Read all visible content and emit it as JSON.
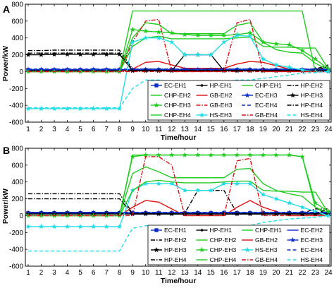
{
  "chart_data": [
    {
      "panel": "A",
      "type": "line",
      "ylabel": "Power/kW",
      "xlabel": "Time/hour",
      "ylim": [
        -600,
        800
      ],
      "yticks": [
        -600,
        -400,
        -200,
        0,
        200,
        400,
        600,
        800
      ],
      "xticks": [
        1,
        2,
        3,
        4,
        5,
        6,
        7,
        8,
        9,
        10,
        11,
        12,
        13,
        14,
        15,
        16,
        17,
        18,
        19,
        20,
        21,
        22,
        23,
        24
      ],
      "x": [
        1,
        2,
        3,
        4,
        5,
        6,
        7,
        8,
        9,
        10,
        11,
        12,
        13,
        14,
        15,
        16,
        17,
        18,
        19,
        20,
        21,
        22,
        23,
        24
      ],
      "legend_position": "bottom-right",
      "series": [
        {
          "name": "EC-EH1",
          "color": "#0a2dc8",
          "dash": "solid",
          "marker": "square",
          "values": [
            20,
            20,
            20,
            20,
            20,
            20,
            20,
            20,
            20,
            20,
            20,
            20,
            20,
            20,
            20,
            20,
            20,
            20,
            20,
            20,
            20,
            20,
            20,
            20
          ]
        },
        {
          "name": "HP-EH1",
          "color": "#000000",
          "dash": "solid",
          "marker": "dot",
          "values": [
            10,
            10,
            10,
            10,
            10,
            10,
            10,
            10,
            10,
            10,
            10,
            10,
            10,
            10,
            10,
            10,
            10,
            10,
            10,
            10,
            10,
            10,
            10,
            10
          ]
        },
        {
          "name": "CHP-EH1",
          "color": "#22cc22",
          "dash": "solid",
          "marker": "none",
          "values": [
            0,
            0,
            0,
            0,
            0,
            0,
            0,
            0,
            720,
            720,
            720,
            720,
            720,
            720,
            720,
            720,
            720,
            720,
            720,
            720,
            720,
            720,
            0,
            0
          ]
        },
        {
          "name": "HP-EH2",
          "color": "#000000",
          "dash": "dashdot",
          "marker": "none",
          "values": [
            250,
            250,
            255,
            255,
            255,
            255,
            255,
            255,
            30,
            30,
            30,
            30,
            30,
            30,
            30,
            30,
            30,
            30,
            30,
            30,
            30,
            30,
            30,
            80
          ]
        },
        {
          "name": "CHP-EH2",
          "color": "#22cc22",
          "dash": "solid",
          "marker": "none",
          "values": [
            0,
            0,
            0,
            0,
            0,
            0,
            0,
            0,
            400,
            580,
            560,
            450,
            450,
            450,
            450,
            450,
            550,
            580,
            350,
            260,
            230,
            220,
            100,
            20
          ]
        },
        {
          "name": "GB-EH2",
          "color": "#dd1111",
          "dash": "solid",
          "marker": "none",
          "values": [
            0,
            0,
            0,
            0,
            0,
            0,
            0,
            0,
            30,
            110,
            120,
            80,
            40,
            40,
            40,
            40,
            90,
            120,
            110,
            70,
            30,
            0,
            0,
            0
          ]
        },
        {
          "name": "EC-EH3",
          "color": "#0a2dc8",
          "dash": "solid",
          "marker": "star",
          "values": [
            25,
            25,
            25,
            25,
            25,
            25,
            25,
            25,
            25,
            25,
            25,
            25,
            25,
            25,
            25,
            25,
            25,
            25,
            25,
            25,
            25,
            25,
            25,
            25
          ]
        },
        {
          "name": "HP-EH3",
          "color": "#000000",
          "dash": "solid",
          "marker": "star",
          "values": [
            200,
            200,
            205,
            205,
            205,
            205,
            205,
            205,
            10,
            10,
            10,
            10,
            200,
            200,
            200,
            10,
            10,
            10,
            10,
            10,
            10,
            10,
            10,
            10
          ]
        },
        {
          "name": "CHP-EH3",
          "color": "#22cc22",
          "dash": "solid",
          "marker": "star",
          "values": [
            0,
            0,
            0,
            0,
            0,
            0,
            0,
            0,
            500,
            480,
            470,
            460,
            440,
            430,
            430,
            430,
            440,
            460,
            350,
            330,
            320,
            250,
            150,
            30
          ]
        },
        {
          "name": "GB-EH3",
          "color": "#dd1111",
          "dash": "dashdot",
          "marker": "none",
          "values": [
            0,
            0,
            0,
            0,
            0,
            0,
            0,
            0,
            350,
            600,
            620,
            0,
            0,
            0,
            0,
            0,
            580,
            620,
            0,
            0,
            0,
            0,
            0,
            0
          ]
        },
        {
          "name": "EC-EH4",
          "color": "#0a2dc8",
          "dash": "dashed",
          "marker": "none",
          "values": [
            30,
            30,
            30,
            30,
            30,
            30,
            30,
            30,
            30,
            30,
            30,
            30,
            30,
            30,
            30,
            30,
            30,
            30,
            30,
            30,
            30,
            30,
            30,
            30
          ]
        },
        {
          "name": "HP-EH4",
          "color": "#000000",
          "dash": "dashdot",
          "marker": "none",
          "values": [
            220,
            220,
            220,
            220,
            220,
            220,
            220,
            220,
            15,
            15,
            15,
            15,
            15,
            15,
            15,
            15,
            15,
            15,
            15,
            15,
            15,
            15,
            15,
            60
          ]
        },
        {
          "name": "CHP-EH4",
          "color": "#22cc22",
          "dash": "solid",
          "marker": "none",
          "values": [
            0,
            0,
            0,
            0,
            0,
            0,
            0,
            0,
            300,
            400,
            420,
            390,
            390,
            390,
            390,
            390,
            400,
            410,
            300,
            290,
            290,
            280,
            280,
            30
          ]
        },
        {
          "name": "HS-EH3",
          "color": "#22dde6",
          "dash": "solid",
          "marker": "star",
          "values": [
            -440,
            -440,
            -440,
            -440,
            -440,
            -440,
            -440,
            -440,
            350,
            400,
            400,
            350,
            200,
            200,
            200,
            350,
            430,
            420,
            150,
            80,
            50,
            20,
            0,
            0
          ]
        },
        {
          "name": "GB-EH4",
          "color": "#dd1111",
          "dash": "dashdot",
          "marker": "none",
          "values": [
            0,
            0,
            0,
            0,
            0,
            0,
            0,
            0,
            0,
            0,
            0,
            0,
            0,
            0,
            0,
            0,
            0,
            0,
            0,
            0,
            0,
            0,
            0,
            0
          ]
        },
        {
          "name": "HS-EH4",
          "color": "#22dde6",
          "dash": "dashed",
          "marker": "none",
          "values": [
            -430,
            -430,
            -430,
            -430,
            -430,
            -430,
            -430,
            -430,
            -200,
            -100,
            -100,
            -120,
            -130,
            -130,
            -130,
            -120,
            -100,
            -100,
            -80,
            -60,
            -40,
            -20,
            -10,
            0
          ]
        }
      ]
    },
    {
      "panel": "B",
      "type": "line",
      "ylabel": "Power/kW",
      "xlabel": "Time/hour",
      "ylim": [
        -600,
        800
      ],
      "yticks": [
        -600,
        -400,
        -200,
        0,
        200,
        400,
        600,
        800
      ],
      "xticks": [
        1,
        2,
        3,
        4,
        5,
        6,
        7,
        8,
        9,
        10,
        11,
        12,
        13,
        14,
        15,
        16,
        17,
        18,
        19,
        20,
        21,
        22,
        23,
        24
      ],
      "x": [
        1,
        2,
        3,
        4,
        5,
        6,
        7,
        8,
        9,
        10,
        11,
        12,
        13,
        14,
        15,
        16,
        17,
        18,
        19,
        20,
        21,
        22,
        23,
        24
      ],
      "legend_position": "bottom-right",
      "series": [
        {
          "name": "EC-EH1",
          "color": "#0a2dc8",
          "dash": "solid",
          "marker": "square",
          "values": [
            30,
            30,
            30,
            30,
            30,
            30,
            30,
            30,
            30,
            30,
            30,
            30,
            30,
            30,
            30,
            30,
            30,
            30,
            30,
            30,
            30,
            30,
            30,
            30
          ]
        },
        {
          "name": "HP-EH1",
          "color": "#000000",
          "dash": "solid",
          "marker": "dot",
          "values": [
            40,
            40,
            40,
            40,
            40,
            40,
            40,
            40,
            20,
            20,
            20,
            20,
            20,
            20,
            20,
            20,
            20,
            20,
            20,
            20,
            20,
            20,
            20,
            20
          ]
        },
        {
          "name": "CHP-EH1",
          "color": "#22cc22",
          "dash": "solid",
          "marker": "none",
          "values": [
            0,
            0,
            0,
            0,
            0,
            0,
            0,
            0,
            720,
            720,
            720,
            720,
            720,
            720,
            720,
            720,
            720,
            720,
            720,
            720,
            720,
            700,
            100,
            0
          ]
        },
        {
          "name": "EC-EH2",
          "color": "#0a2dc8",
          "dash": "solid",
          "marker": "none",
          "values": [
            25,
            25,
            25,
            25,
            25,
            25,
            25,
            25,
            25,
            25,
            25,
            25,
            25,
            25,
            25,
            25,
            25,
            25,
            25,
            25,
            25,
            25,
            25,
            25
          ]
        },
        {
          "name": "HP-EH2",
          "color": "#000000",
          "dash": "dashdot",
          "marker": "none",
          "values": [
            260,
            260,
            260,
            260,
            260,
            260,
            260,
            260,
            30,
            30,
            30,
            30,
            30,
            300,
            300,
            300,
            30,
            30,
            30,
            30,
            30,
            30,
            80,
            80
          ]
        },
        {
          "name": "CHP-EH2",
          "color": "#22cc22",
          "dash": "solid",
          "marker": "none",
          "values": [
            0,
            0,
            0,
            0,
            0,
            0,
            0,
            0,
            500,
            580,
            520,
            450,
            450,
            450,
            450,
            450,
            550,
            560,
            380,
            300,
            260,
            230,
            100,
            30
          ]
        },
        {
          "name": "GB-EH2",
          "color": "#dd1111",
          "dash": "solid",
          "marker": "none",
          "values": [
            0,
            0,
            0,
            0,
            0,
            0,
            0,
            0,
            100,
            180,
            160,
            80,
            0,
            0,
            0,
            0,
            100,
            180,
            100,
            50,
            0,
            0,
            0,
            0
          ]
        },
        {
          "name": "EC-EH3",
          "color": "#0a2dc8",
          "dash": "solid",
          "marker": "star",
          "values": [
            35,
            35,
            35,
            35,
            35,
            35,
            35,
            35,
            35,
            35,
            35,
            35,
            35,
            35,
            35,
            35,
            35,
            35,
            35,
            35,
            35,
            35,
            35,
            35
          ]
        },
        {
          "name": "HP-EH3",
          "color": "#000000",
          "dash": "solid",
          "marker": "star",
          "values": [
            20,
            20,
            20,
            20,
            20,
            20,
            20,
            20,
            20,
            20,
            20,
            20,
            20,
            20,
            20,
            20,
            20,
            20,
            20,
            20,
            20,
            20,
            20,
            20
          ]
        },
        {
          "name": "CHP-EH3",
          "color": "#22cc22",
          "dash": "solid",
          "marker": "star",
          "values": [
            0,
            0,
            0,
            0,
            0,
            0,
            0,
            0,
            700,
            720,
            720,
            720,
            720,
            720,
            720,
            720,
            720,
            720,
            720,
            720,
            720,
            700,
            150,
            50
          ]
        },
        {
          "name": "HS-EH3",
          "color": "#22dde6",
          "dash": "solid",
          "marker": "star",
          "values": [
            -130,
            -130,
            -130,
            -130,
            -130,
            -130,
            -130,
            -130,
            300,
            380,
            380,
            380,
            300,
            300,
            300,
            380,
            380,
            380,
            250,
            200,
            150,
            100,
            50,
            0
          ]
        },
        {
          "name": "EC-EH4",
          "color": "#0a2dc8",
          "dash": "dashed",
          "marker": "none",
          "values": [
            40,
            40,
            40,
            40,
            40,
            40,
            40,
            40,
            40,
            40,
            40,
            40,
            40,
            40,
            40,
            40,
            40,
            40,
            40,
            40,
            40,
            40,
            40,
            40
          ]
        },
        {
          "name": "HP-EH4",
          "color": "#000000",
          "dash": "dashdot",
          "marker": "none",
          "values": [
            200,
            200,
            200,
            200,
            200,
            200,
            200,
            200,
            20,
            20,
            20,
            20,
            20,
            20,
            20,
            20,
            20,
            20,
            20,
            20,
            20,
            20,
            20,
            80
          ]
        },
        {
          "name": "CHP-EH4",
          "color": "#22cc22",
          "dash": "solid",
          "marker": "none",
          "values": [
            0,
            0,
            0,
            0,
            0,
            0,
            0,
            0,
            300,
            400,
            420,
            400,
            390,
            390,
            390,
            400,
            410,
            410,
            300,
            290,
            290,
            280,
            280,
            30
          ]
        },
        {
          "name": "GB-EH4",
          "color": "#dd1111",
          "dash": "dashdot",
          "marker": "none",
          "values": [
            0,
            0,
            0,
            0,
            0,
            0,
            0,
            0,
            0,
            700,
            700,
            600,
            0,
            0,
            0,
            0,
            650,
            680,
            0,
            0,
            0,
            0,
            0,
            0
          ]
        },
        {
          "name": "HS-EH4",
          "color": "#22dde6",
          "dash": "dashed",
          "marker": "none",
          "values": [
            -420,
            -420,
            -420,
            -420,
            -420,
            -420,
            -420,
            -420,
            -150,
            -120,
            -120,
            -120,
            -120,
            -120,
            -120,
            -120,
            -120,
            -120,
            -80,
            -60,
            -40,
            -30,
            -20,
            0
          ]
        }
      ]
    }
  ]
}
